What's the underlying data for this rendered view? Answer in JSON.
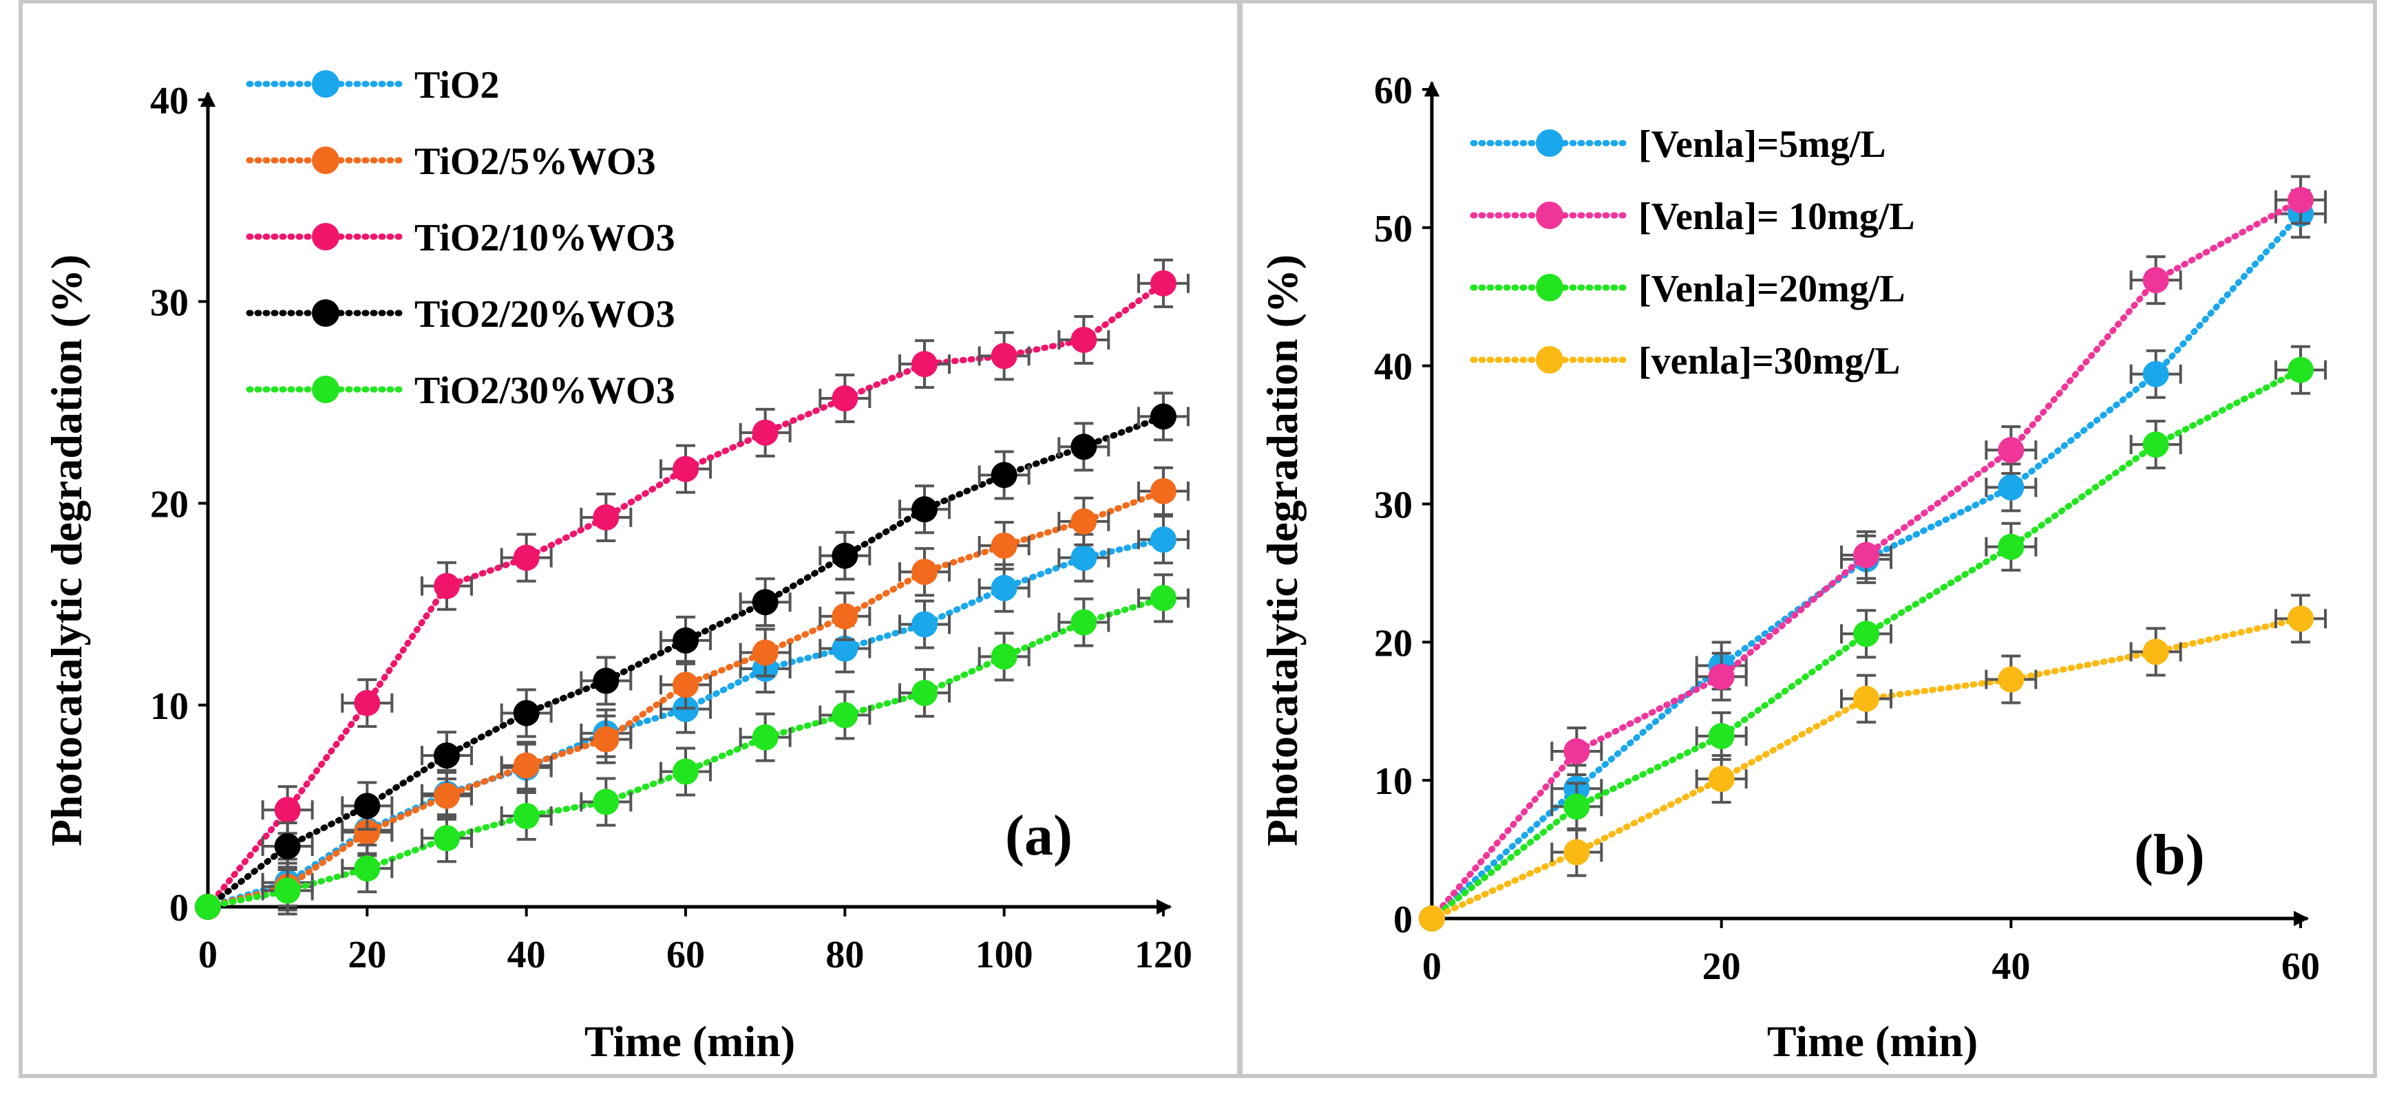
{
  "chart_data": [
    {
      "type": "line",
      "panel_label": "(a)",
      "xlabel": "Time (min)",
      "ylabel": "Photocatalytic degradation (%)",
      "xlim": [
        0,
        120
      ],
      "ylim": [
        0,
        40
      ],
      "xticks": [
        "0",
        "20",
        "40",
        "60",
        "80",
        "100",
        "120"
      ],
      "yticks": [
        "0",
        "10",
        "20",
        "30",
        "40"
      ],
      "error_bars": true,
      "legend_position": "top-left",
      "x": [
        0,
        10,
        20,
        30,
        40,
        50,
        60,
        70,
        80,
        90,
        100,
        110,
        120
      ],
      "series": [
        {
          "name": "TiO2",
          "color": "#1aa7ec",
          "values": [
            0,
            1.2,
            3.8,
            5.6,
            6.9,
            8.6,
            9.8,
            11.8,
            12.8,
            14.0,
            15.8,
            17.3,
            18.2
          ]
        },
        {
          "name": "TiO2/5%WO3",
          "color": "#f26b1d",
          "values": [
            0,
            1.0,
            3.7,
            5.5,
            7.0,
            8.3,
            11.0,
            12.6,
            14.4,
            16.6,
            17.9,
            19.1,
            20.6
          ]
        },
        {
          "name": "TiO2/10%WO3",
          "color": "#f0156b",
          "values": [
            0,
            4.8,
            10.1,
            15.9,
            17.3,
            19.3,
            21.7,
            23.5,
            25.2,
            26.9,
            27.3,
            28.1,
            30.9
          ]
        },
        {
          "name": "TiO2/20%WO3",
          "color": "#000000",
          "values": [
            0,
            3.0,
            5.0,
            7.5,
            9.6,
            11.2,
            13.2,
            15.1,
            17.4,
            19.7,
            21.4,
            22.8,
            24.3
          ]
        },
        {
          "name": "TiO2/30%WO3",
          "color": "#21e51f",
          "values": [
            0,
            0.8,
            1.9,
            3.4,
            4.5,
            5.2,
            6.7,
            8.4,
            9.5,
            10.6,
            12.4,
            14.1,
            15.3
          ]
        }
      ]
    },
    {
      "type": "line",
      "panel_label": "(b)",
      "xlabel": "Time (min)",
      "ylabel": "Photocatalytic degradation (%)",
      "xlim": [
        0,
        60
      ],
      "ylim": [
        0,
        60
      ],
      "xticks": [
        "0",
        "20",
        "40",
        "60"
      ],
      "yticks": [
        "0",
        "10",
        "20",
        "30",
        "40",
        "50",
        "60"
      ],
      "error_bars": true,
      "legend_position": "top-left",
      "x": [
        0,
        10,
        20,
        30,
        40,
        50,
        60
      ],
      "series": [
        {
          "name": "[Venla]=5mg/L",
          "color": "#1aa7ec",
          "values": [
            0,
            9.4,
            18.3,
            26.0,
            31.2,
            39.4,
            51.0
          ]
        },
        {
          "name": "[Venla]= 10mg/L",
          "color": "#f0359a",
          "values": [
            0,
            12.1,
            17.5,
            26.3,
            33.9,
            46.2,
            52.0
          ]
        },
        {
          "name": "[Venla]=20mg/L",
          "color": "#21e51f",
          "values": [
            0,
            8.1,
            13.2,
            20.6,
            26.9,
            34.3,
            39.7
          ]
        },
        {
          "name": "[venla]=30mg/L",
          "color": "#fbb914",
          "values": [
            0,
            4.8,
            10.1,
            15.9,
            17.3,
            19.3,
            21.7
          ]
        }
      ]
    }
  ]
}
